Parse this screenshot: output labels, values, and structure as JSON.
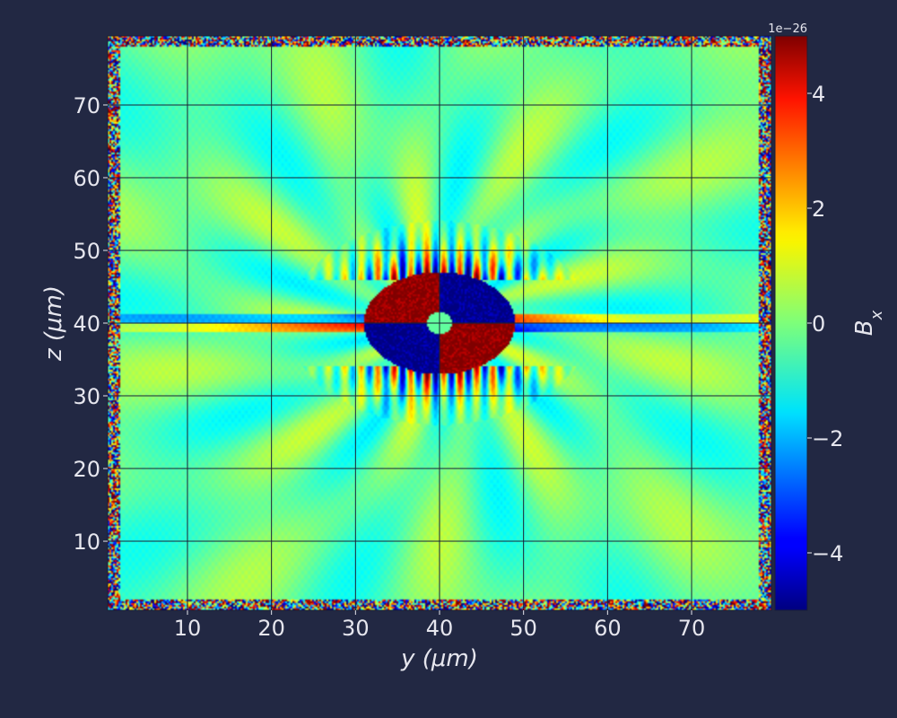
{
  "chart_data": {
    "type": "heatmap",
    "title": "",
    "xlabel": "y (μm)",
    "ylabel": "z (μm)",
    "xlim": [
      0.5,
      79.5
    ],
    "ylim": [
      0.5,
      79.5
    ],
    "x_ticks": [
      10,
      20,
      30,
      40,
      50,
      60,
      70
    ],
    "y_ticks": [
      10,
      20,
      30,
      40,
      50,
      60,
      70
    ],
    "grid": true,
    "colormap": "jet",
    "colorbar": {
      "label": "B_x",
      "range": [
        -5,
        5
      ],
      "ticks": [
        -4,
        -2,
        0,
        2,
        4
      ],
      "tick_labels": [
        "−4",
        "−2",
        "0",
        "2",
        "4"
      ],
      "offset_text": "1e−26"
    },
    "field_description": {
      "center": [
        40,
        40
      ],
      "background_value": -0.3,
      "quadrant_sign_top_left": -1,
      "core_extent": [
        8,
        6
      ],
      "lobe_amplitude": 5
    },
    "colors": {
      "background": "#222843",
      "text": "#e6e6ee",
      "grid": "#1a1f36"
    }
  }
}
